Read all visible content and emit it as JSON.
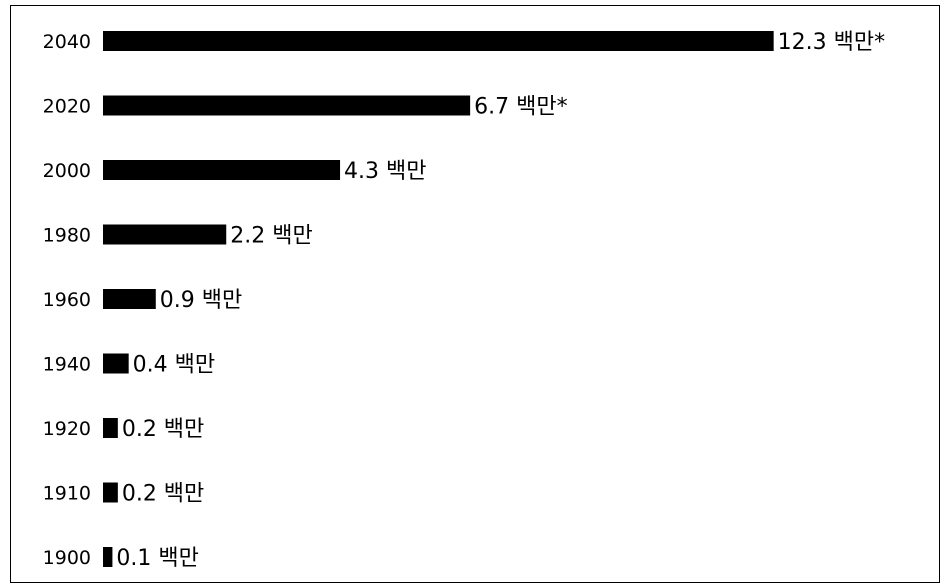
{
  "chart_data": {
    "type": "bar",
    "orientation": "horizontal",
    "title": "",
    "xlabel": "",
    "ylabel": "",
    "grid": false,
    "legend": "none",
    "bar_color": "#000000",
    "categories": [
      "2040",
      "2020",
      "2000",
      "1980",
      "1960",
      "1940",
      "1920",
      "1910",
      "1900"
    ],
    "values": [
      12.3,
      6.7,
      4.3,
      2.2,
      0.9,
      0.4,
      0.2,
      0.2,
      0.1
    ],
    "labels": [
      "12.3 백만*",
      "6.7 백만*",
      "4.3 백만",
      "2.2 백만",
      "0.9 백만",
      "0.4 백만",
      "0.2 백만",
      "0.2 백만",
      "0.1 백만"
    ]
  }
}
